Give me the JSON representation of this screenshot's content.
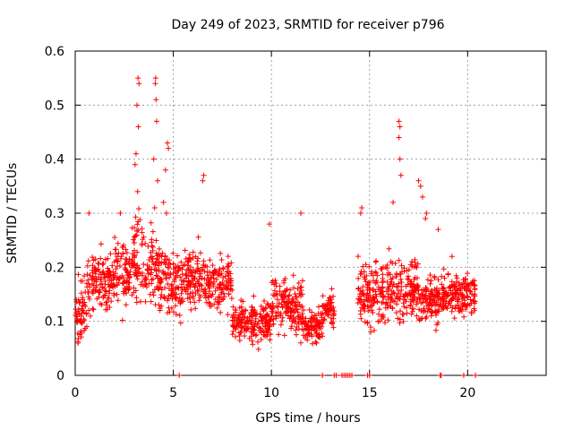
{
  "chart_data": {
    "type": "scatter",
    "title": "Day 249 of 2023, SRMTID for receiver p796",
    "xlabel": "GPS time / hours",
    "ylabel": "SRMTID / TECUs",
    "xlim": [
      0,
      24
    ],
    "ylim": [
      0,
      0.6
    ],
    "xticks": [
      0,
      5,
      10,
      15,
      20
    ],
    "xtick_labels": [
      "0",
      "5",
      "10",
      "15",
      "20"
    ],
    "yticks": [
      0,
      0.1,
      0.2,
      0.3,
      0.4,
      0.5,
      0.6
    ],
    "ytick_labels": [
      "0",
      "0.1",
      "0.2",
      "0.3",
      "0.4",
      "0.5",
      "0.6"
    ],
    "grid": true,
    "marker": "+",
    "series_color": "#ff0000",
    "data_extent_hours": [
      0,
      20.4
    ],
    "segments": [
      {
        "x0": 0.0,
        "x1": 0.6,
        "center": 0.12,
        "spread": 0.06
      },
      {
        "x0": 0.6,
        "x1": 2.0,
        "center": 0.17,
        "spread": 0.06
      },
      {
        "x0": 2.0,
        "x1": 3.0,
        "center": 0.19,
        "spread": 0.06
      },
      {
        "x0": 3.0,
        "x1": 3.6,
        "center": 0.22,
        "spread": 0.09
      },
      {
        "x0": 3.6,
        "x1": 4.6,
        "center": 0.19,
        "spread": 0.07
      },
      {
        "x0": 4.6,
        "x1": 5.5,
        "center": 0.17,
        "spread": 0.06
      },
      {
        "x0": 5.5,
        "x1": 6.8,
        "center": 0.18,
        "spread": 0.06
      },
      {
        "x0": 6.8,
        "x1": 8.0,
        "center": 0.17,
        "spread": 0.05
      },
      {
        "x0": 8.0,
        "x1": 10.0,
        "center": 0.1,
        "spread": 0.04
      },
      {
        "x0": 10.0,
        "x1": 11.6,
        "center": 0.13,
        "spread": 0.05
      },
      {
        "x0": 11.6,
        "x1": 12.6,
        "center": 0.09,
        "spread": 0.03
      },
      {
        "x0": 12.6,
        "x1": 13.2,
        "center": 0.12,
        "spread": 0.03
      },
      {
        "x0": 14.4,
        "x1": 15.5,
        "center": 0.15,
        "spread": 0.06
      },
      {
        "x0": 15.5,
        "x1": 17.5,
        "center": 0.16,
        "spread": 0.06
      },
      {
        "x0": 17.5,
        "x1": 18.5,
        "center": 0.14,
        "spread": 0.05
      },
      {
        "x0": 18.5,
        "x1": 20.4,
        "center": 0.15,
        "spread": 0.04
      }
    ],
    "peaks": [
      {
        "x": 3.2,
        "y": 0.55
      },
      {
        "x": 3.25,
        "y": 0.54
      },
      {
        "x": 3.15,
        "y": 0.5
      },
      {
        "x": 3.22,
        "y": 0.46
      },
      {
        "x": 3.1,
        "y": 0.41
      },
      {
        "x": 3.05,
        "y": 0.39
      },
      {
        "x": 3.18,
        "y": 0.34
      },
      {
        "x": 4.1,
        "y": 0.55
      },
      {
        "x": 4.08,
        "y": 0.54
      },
      {
        "x": 4.12,
        "y": 0.51
      },
      {
        "x": 4.15,
        "y": 0.47
      },
      {
        "x": 4.0,
        "y": 0.4
      },
      {
        "x": 4.2,
        "y": 0.36
      },
      {
        "x": 4.05,
        "y": 0.31
      },
      {
        "x": 4.7,
        "y": 0.43
      },
      {
        "x": 4.75,
        "y": 0.42
      },
      {
        "x": 4.6,
        "y": 0.38
      },
      {
        "x": 4.5,
        "y": 0.32
      },
      {
        "x": 4.65,
        "y": 0.3
      },
      {
        "x": 6.55,
        "y": 0.37
      },
      {
        "x": 6.5,
        "y": 0.36
      },
      {
        "x": 2.3,
        "y": 0.3
      },
      {
        "x": 0.7,
        "y": 0.3
      },
      {
        "x": 9.9,
        "y": 0.28
      },
      {
        "x": 11.5,
        "y": 0.3
      },
      {
        "x": 14.6,
        "y": 0.31
      },
      {
        "x": 14.55,
        "y": 0.3
      },
      {
        "x": 16.5,
        "y": 0.47
      },
      {
        "x": 16.55,
        "y": 0.46
      },
      {
        "x": 16.5,
        "y": 0.44
      },
      {
        "x": 16.55,
        "y": 0.4
      },
      {
        "x": 16.6,
        "y": 0.37
      },
      {
        "x": 16.2,
        "y": 0.32
      },
      {
        "x": 17.5,
        "y": 0.36
      },
      {
        "x": 17.6,
        "y": 0.35
      },
      {
        "x": 17.7,
        "y": 0.33
      },
      {
        "x": 17.9,
        "y": 0.3
      },
      {
        "x": 17.85,
        "y": 0.29
      },
      {
        "x": 18.5,
        "y": 0.27
      },
      {
        "x": 19.2,
        "y": 0.22
      }
    ],
    "zero_points_x": [
      5.3,
      12.6,
      13.2,
      13.3,
      13.6,
      13.7,
      13.8,
      13.9,
      14.0,
      14.1,
      14.9,
      15.0,
      18.6,
      18.65,
      19.8,
      20.4
    ]
  }
}
